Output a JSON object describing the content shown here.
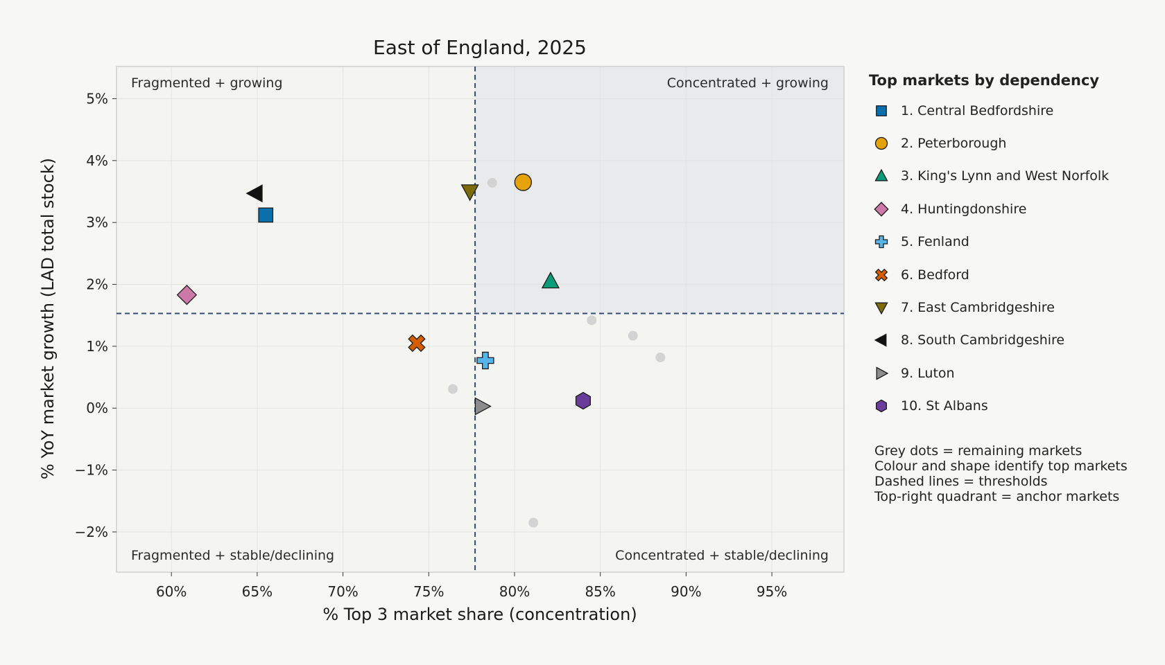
{
  "chart_data": {
    "type": "scatter",
    "title": "East of England, 2025",
    "xlabel": "% Top 3 market share (concentration)",
    "ylabel": "% YoY market growth (LAD total stock)",
    "xlim": [
      56.8,
      99.2
    ],
    "ylim": [
      -2.65,
      5.52
    ],
    "x_ticks": [
      60,
      65,
      70,
      75,
      80,
      85,
      90,
      95
    ],
    "x_tick_labels": [
      "60%",
      "65%",
      "70%",
      "75%",
      "80%",
      "85%",
      "90%",
      "95%"
    ],
    "y_ticks": [
      -2,
      -1,
      0,
      1,
      2,
      3,
      4,
      5
    ],
    "y_tick_labels": [
      "−2%",
      "−1%",
      "0%",
      "1%",
      "2%",
      "3%",
      "4%",
      "5%"
    ],
    "grid": true,
    "thresholds": {
      "x": 77.7,
      "y": 1.53
    },
    "quadrant_labels": {
      "top_left": "Fragmented + growing",
      "top_right": "Concentrated + growing",
      "bottom_left": "Fragmented + stable/declining",
      "bottom_right": "Concentrated + stable/declining"
    },
    "series": [
      {
        "name": "1. Central Bedfordshire",
        "marker": "square",
        "color": "#0a6fab",
        "x": 65.5,
        "y": 3.12
      },
      {
        "name": "2. Peterborough",
        "marker": "circle",
        "color": "#e6a20a",
        "x": 80.5,
        "y": 3.65
      },
      {
        "name": "3. King's Lynn and West Norfolk",
        "marker": "triangle-up",
        "color": "#0a9b78",
        "x": 82.1,
        "y": 2.05
      },
      {
        "name": "4. Huntingdonshire",
        "marker": "diamond",
        "color": "#cc79a7",
        "x": 60.9,
        "y": 1.83
      },
      {
        "name": "5. Fenland",
        "marker": "plus",
        "color": "#56b4e9",
        "x": 78.3,
        "y": 0.77
      },
      {
        "name": "6. Bedford",
        "marker": "x",
        "color": "#d55e00",
        "x": 74.3,
        "y": 1.05
      },
      {
        "name": "7. East Cambridgeshire",
        "marker": "triangle-down",
        "color": "#7d6a0a",
        "x": 77.4,
        "y": 3.5
      },
      {
        "name": "8. South Cambridgeshire",
        "marker": "triangle-left",
        "color": "#111111",
        "x": 64.9,
        "y": 3.47
      },
      {
        "name": "9. Luton",
        "marker": "triangle-right",
        "color": "#8c8c8c",
        "x": 78.1,
        "y": 0.03
      },
      {
        "name": "10. St Albans",
        "marker": "hexagon",
        "color": "#6a3d9a",
        "x": 84.0,
        "y": 0.12
      }
    ],
    "other_points": [
      {
        "x": 78.7,
        "y": 3.64
      },
      {
        "x": 84.5,
        "y": 1.42
      },
      {
        "x": 86.9,
        "y": 1.17
      },
      {
        "x": 88.5,
        "y": 0.82
      },
      {
        "x": 76.4,
        "y": 0.31
      },
      {
        "x": 81.1,
        "y": -1.85
      }
    ],
    "other_points_color": "#d3d3d3",
    "quadrant_highlight_color": "#e9eaec",
    "threshold_color": "#344a6e",
    "legend": {
      "title": "Top markets by dependency",
      "placement": "right",
      "notes": [
        "Grey dots = remaining markets",
        "Colour and shape identify top markets",
        "Dashed lines = thresholds",
        "Top-right quadrant = anchor markets"
      ]
    }
  }
}
